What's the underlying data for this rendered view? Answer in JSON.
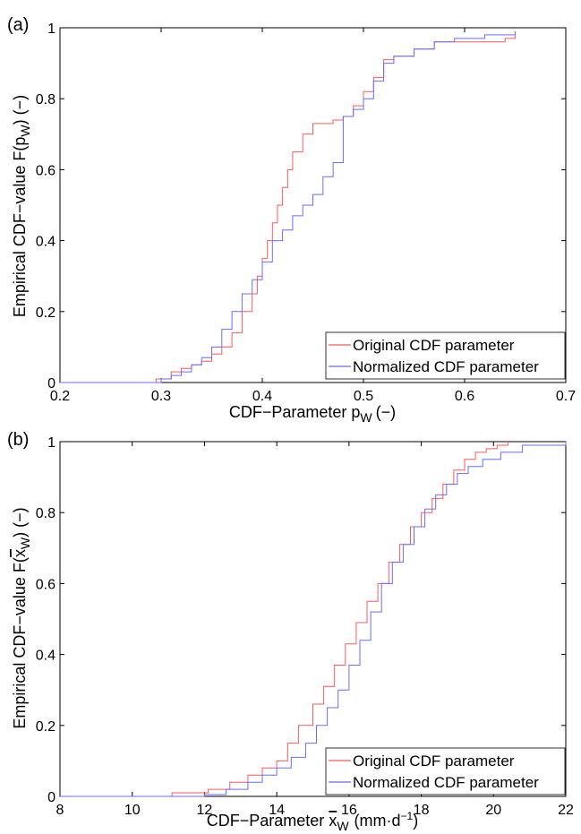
{
  "chart_data": [
    {
      "panel_label": "(a)",
      "type": "line",
      "step": true,
      "xlabel": "CDF−Parameter p",
      "xlabel_sub": "W",
      "xlabel_unit": "(−)",
      "ylabel": "Empirical CDF−value F(p",
      "ylabel_sub": "W",
      "ylabel_unit": ") (−)",
      "xlim": [
        0.2,
        0.7
      ],
      "ylim": [
        0,
        1
      ],
      "xticks": [
        0.2,
        0.3,
        0.4,
        0.5,
        0.6,
        0.7
      ],
      "xtick_labels": [
        "0.2",
        "0.3",
        "0.4",
        "0.5",
        "0.6",
        "0.7"
      ],
      "yticks": [
        0,
        0.2,
        0.4,
        0.6,
        0.8,
        1
      ],
      "ytick_labels": [
        "0",
        "0.2",
        "0.4",
        "0.6",
        "0.8",
        "1"
      ],
      "grid": false,
      "legend": "bottom-right",
      "series": [
        {
          "name": "Original CDF parameter",
          "color": "#ff5a5a",
          "x": [
            0.2,
            0.28,
            0.295,
            0.31,
            0.32,
            0.33,
            0.34,
            0.35,
            0.36,
            0.37,
            0.38,
            0.39,
            0.395,
            0.4,
            0.405,
            0.41,
            0.415,
            0.42,
            0.425,
            0.43,
            0.44,
            0.45,
            0.46,
            0.47,
            0.48,
            0.49,
            0.5,
            0.51,
            0.52,
            0.53,
            0.55,
            0.57,
            0.6,
            0.62,
            0.64,
            0.65
          ],
          "y": [
            0,
            0,
            0.01,
            0.03,
            0.04,
            0.05,
            0.06,
            0.08,
            0.1,
            0.14,
            0.2,
            0.25,
            0.3,
            0.35,
            0.4,
            0.45,
            0.5,
            0.55,
            0.6,
            0.65,
            0.7,
            0.73,
            0.73,
            0.74,
            0.75,
            0.78,
            0.82,
            0.86,
            0.91,
            0.92,
            0.94,
            0.96,
            0.96,
            0.96,
            0.97,
            0.98
          ]
        },
        {
          "name": "Normalized CDF parameter",
          "color": "#6b6bff",
          "x": [
            0.2,
            0.29,
            0.3,
            0.31,
            0.32,
            0.33,
            0.34,
            0.35,
            0.36,
            0.37,
            0.38,
            0.39,
            0.4,
            0.41,
            0.42,
            0.43,
            0.44,
            0.45,
            0.46,
            0.47,
            0.48,
            0.49,
            0.5,
            0.51,
            0.52,
            0.53,
            0.55,
            0.57,
            0.59,
            0.62,
            0.65
          ],
          "y": [
            0,
            0,
            0.01,
            0.02,
            0.03,
            0.05,
            0.07,
            0.1,
            0.15,
            0.2,
            0.25,
            0.29,
            0.34,
            0.4,
            0.43,
            0.47,
            0.5,
            0.53,
            0.58,
            0.62,
            0.75,
            0.77,
            0.8,
            0.85,
            0.9,
            0.92,
            0.94,
            0.96,
            0.97,
            0.98,
            0.99
          ]
        }
      ]
    },
    {
      "panel_label": "(b)",
      "type": "line",
      "step": true,
      "xlabel": "CDF−Parameter",
      "xlabel_var": "x",
      "xlabel_sub": "W",
      "xlabel_unit": "(mm·d",
      "xlabel_sup": "−1",
      "xlabel_close": ")",
      "ylabel": "Empirical CDF−value F(",
      "ylabel_var": "x",
      "ylabel_sub": "W",
      "ylabel_unit": ") (−)",
      "xlim": [
        8,
        22
      ],
      "ylim": [
        0,
        1
      ],
      "xticks": [
        8,
        10,
        12,
        14,
        16,
        18,
        20,
        22
      ],
      "xtick_labels": [
        "8",
        "10",
        "12",
        "14",
        "16",
        "18",
        "20",
        "22"
      ],
      "yticks": [
        0,
        0.2,
        0.4,
        0.6,
        0.8,
        1
      ],
      "ytick_labels": [
        "0",
        "0.2",
        "0.4",
        "0.6",
        "0.8",
        "1"
      ],
      "grid": false,
      "legend": "bottom-right",
      "series": [
        {
          "name": "Original CDF parameter",
          "color": "#ff5a5a",
          "x": [
            8,
            11.1,
            12.1,
            12.7,
            13.2,
            13.6,
            14.0,
            14.3,
            14.6,
            15.0,
            15.3,
            15.6,
            15.9,
            16.2,
            16.5,
            16.8,
            17.1,
            17.4,
            17.7,
            18.0,
            18.3,
            18.6,
            18.9,
            19.2,
            19.5,
            19.8,
            20.1,
            20.4
          ],
          "y": [
            0,
            0.01,
            0.02,
            0.04,
            0.06,
            0.08,
            0.1,
            0.15,
            0.2,
            0.26,
            0.31,
            0.37,
            0.43,
            0.49,
            0.55,
            0.6,
            0.66,
            0.71,
            0.76,
            0.8,
            0.84,
            0.88,
            0.92,
            0.95,
            0.97,
            0.98,
            0.99,
            1.0
          ]
        },
        {
          "name": "Normalized CDF parameter",
          "color": "#6b6bff",
          "x": [
            8,
            12.0,
            12.6,
            13.2,
            13.6,
            14.0,
            14.4,
            14.8,
            15.1,
            15.4,
            15.7,
            16.0,
            16.3,
            16.6,
            16.9,
            17.2,
            17.5,
            17.8,
            18.1,
            18.4,
            18.7,
            19.0,
            19.3,
            19.7,
            20.2,
            20.8,
            22.0
          ],
          "y": [
            0,
            0.005,
            0.02,
            0.04,
            0.06,
            0.08,
            0.11,
            0.15,
            0.2,
            0.25,
            0.3,
            0.37,
            0.44,
            0.52,
            0.6,
            0.66,
            0.71,
            0.76,
            0.81,
            0.85,
            0.88,
            0.91,
            0.93,
            0.95,
            0.97,
            0.99,
            1.0
          ]
        }
      ]
    }
  ]
}
